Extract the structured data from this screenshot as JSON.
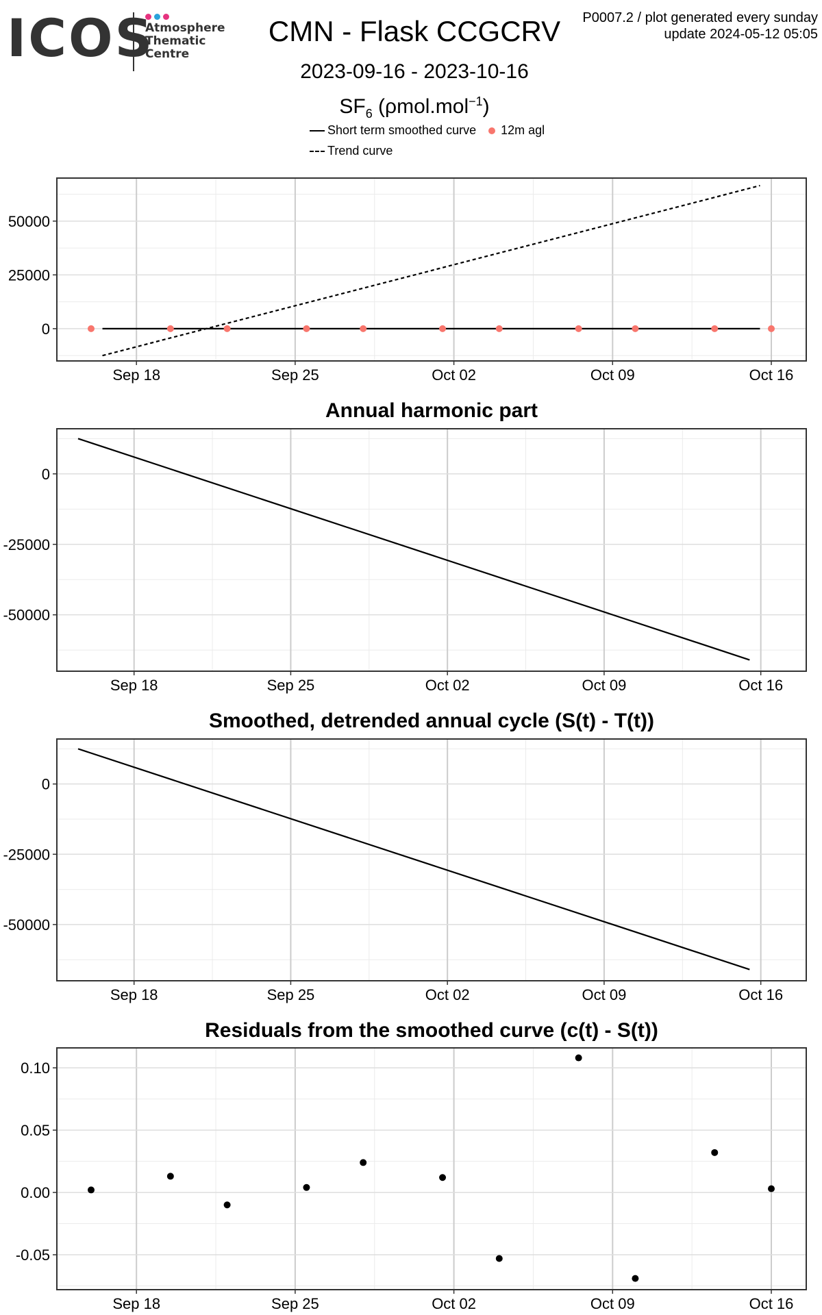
{
  "header": {
    "logo_text": "ICOS",
    "logo_org_lines": [
      "Atmosphere",
      "Thematic",
      "Centre"
    ],
    "logo_dot_colors": [
      "#e6337f",
      "#2aa3db",
      "#e6337f"
    ],
    "title": "CMN - Flask CCGCRV",
    "date_range": "2023-09-16 - 2023-10-16",
    "unit_base": "SF",
    "unit_sub": "6",
    "unit_mid": " (ρmol.mol",
    "unit_sup": "−1",
    "unit_end": ")",
    "plot_id": "P0007.2 / plot generated every sunday",
    "update": "update  2024-05-12 05:05"
  },
  "legend": {
    "smoothed": "Short term smoothed curve",
    "points": "12m agl",
    "trend": "Trend curve"
  },
  "colors": {
    "points": "#F8766D",
    "line": "#000000"
  },
  "chart_data": [
    {
      "type": "line",
      "title": "",
      "x_ticks": [
        "Sep 18",
        "Sep 25",
        "Oct 02",
        "Oct 09",
        "Oct 16"
      ],
      "x_tick_days": [
        2,
        9,
        16,
        23,
        30
      ],
      "ylim": [
        -15000,
        70000
      ],
      "y_ticks": [
        0,
        25000,
        50000
      ],
      "y_tick_labels": [
        "0",
        "25000",
        "50000"
      ],
      "series": [
        {
          "name": "Short term smoothed curve",
          "style": "solid",
          "x": [
            0.5,
            29.5
          ],
          "y": [
            0,
            0
          ]
        },
        {
          "name": "Trend curve",
          "style": "dashed",
          "x": [
            0.5,
            29.5
          ],
          "y": [
            -12500,
            66500
          ]
        },
        {
          "name": "12m agl",
          "style": "points",
          "x": [
            0,
            3.5,
            6,
            9.5,
            12,
            15.5,
            18,
            21.5,
            24,
            27.5,
            30
          ],
          "y": [
            0,
            0,
            0,
            0,
            0,
            0,
            0,
            0,
            0,
            0,
            0
          ]
        }
      ],
      "grid": true
    },
    {
      "type": "line",
      "title": "Annual harmonic part",
      "x_ticks": [
        "Sep 18",
        "Sep 25",
        "Oct 02",
        "Oct 09",
        "Oct 16"
      ],
      "x_tick_days": [
        2,
        9,
        16,
        23,
        30
      ],
      "ylim": [
        -70000,
        16000
      ],
      "y_ticks": [
        0,
        -25000,
        -50000
      ],
      "y_tick_labels": [
        "0",
        "-25000",
        "-50000"
      ],
      "series": [
        {
          "style": "solid",
          "x": [
            -0.5,
            29.5
          ],
          "y": [
            12500,
            -66000
          ]
        }
      ],
      "grid": true
    },
    {
      "type": "line",
      "title": "Smoothed, detrended annual cycle (S(t) - T(t))",
      "x_ticks": [
        "Sep 18",
        "Sep 25",
        "Oct 02",
        "Oct 09",
        "Oct 16"
      ],
      "x_tick_days": [
        2,
        9,
        16,
        23,
        30
      ],
      "ylim": [
        -70000,
        16000
      ],
      "y_ticks": [
        0,
        -25000,
        -50000
      ],
      "y_tick_labels": [
        "0",
        "-25000",
        "-50000"
      ],
      "series": [
        {
          "style": "solid",
          "x": [
            -0.5,
            29.5
          ],
          "y": [
            12500,
            -66000
          ]
        }
      ],
      "grid": true
    },
    {
      "type": "scatter",
      "title": "Residuals from the smoothed curve (c(t) - S(t))",
      "x_ticks": [
        "Sep 18",
        "Sep 25",
        "Oct 02",
        "Oct 09",
        "Oct 16"
      ],
      "x_tick_days": [
        2,
        9,
        16,
        23,
        30
      ],
      "ylim": [
        -0.078,
        0.116
      ],
      "y_ticks": [
        0.1,
        0.05,
        0.0,
        -0.05
      ],
      "y_tick_labels": [
        "0.10",
        "0.05",
        "0.00",
        "-0.05"
      ],
      "series": [
        {
          "style": "points",
          "x": [
            0,
            3.5,
            6,
            9.5,
            12,
            15.5,
            18,
            21.5,
            24,
            27.5,
            30
          ],
          "y": [
            0.002,
            0.013,
            -0.01,
            0.004,
            0.024,
            0.012,
            -0.053,
            0.108,
            -0.069,
            0.032,
            0.003
          ]
        }
      ],
      "grid": true
    }
  ]
}
